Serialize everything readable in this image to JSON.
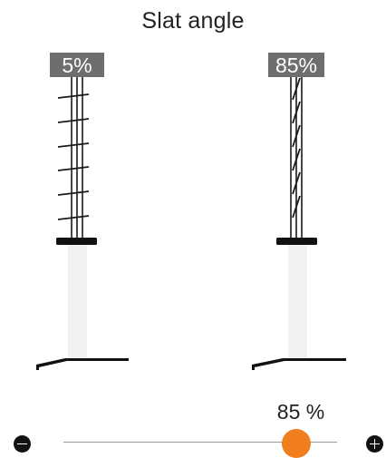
{
  "title": "Slat angle",
  "left_blind": {
    "label": "5%",
    "angle_percent": 5
  },
  "right_blind": {
    "label": "85%",
    "angle_percent": 85
  },
  "slider": {
    "value_label": "85 %",
    "value_percent": 85,
    "accent_color": "#f07d1e",
    "minus_icon": "minus-circle-icon",
    "plus_icon": "plus-circle-icon"
  }
}
